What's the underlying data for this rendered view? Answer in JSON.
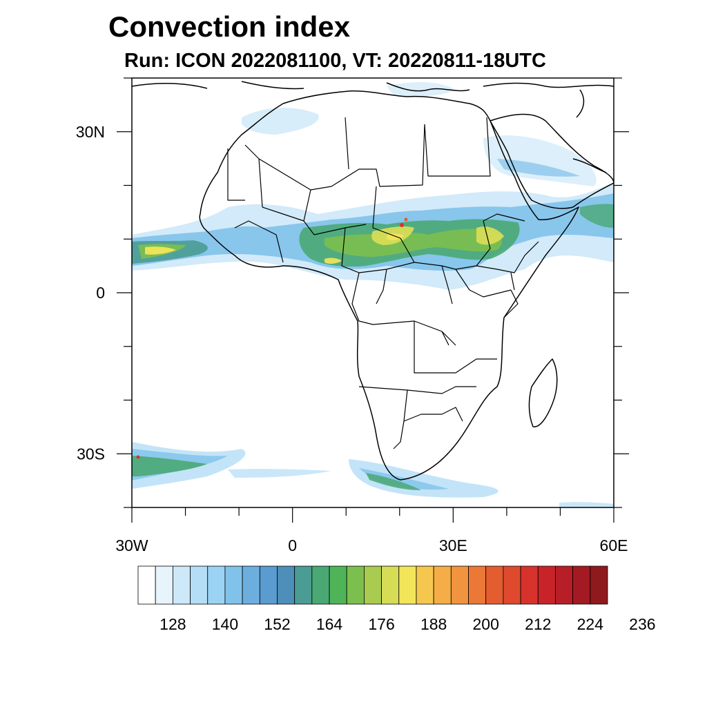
{
  "title": "Convection index",
  "subtitle": "Run: ICON 2022081100,  VT: 20220811-18UTC",
  "map": {
    "lon_range": [
      -30,
      60
    ],
    "lat_range": [
      -40,
      40
    ],
    "lon_ticks": [
      {
        "value": -30,
        "label": "30W"
      },
      {
        "value": 0,
        "label": "0"
      },
      {
        "value": 30,
        "label": "30E"
      },
      {
        "value": 60,
        "label": "60E"
      }
    ],
    "lat_ticks": [
      {
        "value": 30,
        "label": "30N"
      },
      {
        "value": 0,
        "label": "0"
      },
      {
        "value": -30,
        "label": "30S"
      }
    ]
  },
  "colorbar": {
    "colors": [
      "#ffffff",
      "#e8f4fc",
      "#cde8f8",
      "#b4ddf6",
      "#9ad3f4",
      "#80c2ea",
      "#6cafdf",
      "#5a9bd0",
      "#4d8fb8",
      "#4a9c94",
      "#4aa874",
      "#4eb457",
      "#7cbf4e",
      "#a9cb4f",
      "#d7dc55",
      "#f2e55a",
      "#f6c74e",
      "#f4ad47",
      "#f19440",
      "#ec7838",
      "#e45d31",
      "#df4a2e",
      "#d8322c",
      "#c9232a",
      "#b81e27",
      "#a41a22",
      "#8e1a1e"
    ],
    "labels": [
      "128",
      "140",
      "152",
      "164",
      "176",
      "188",
      "200",
      "212",
      "224",
      "236"
    ]
  }
}
